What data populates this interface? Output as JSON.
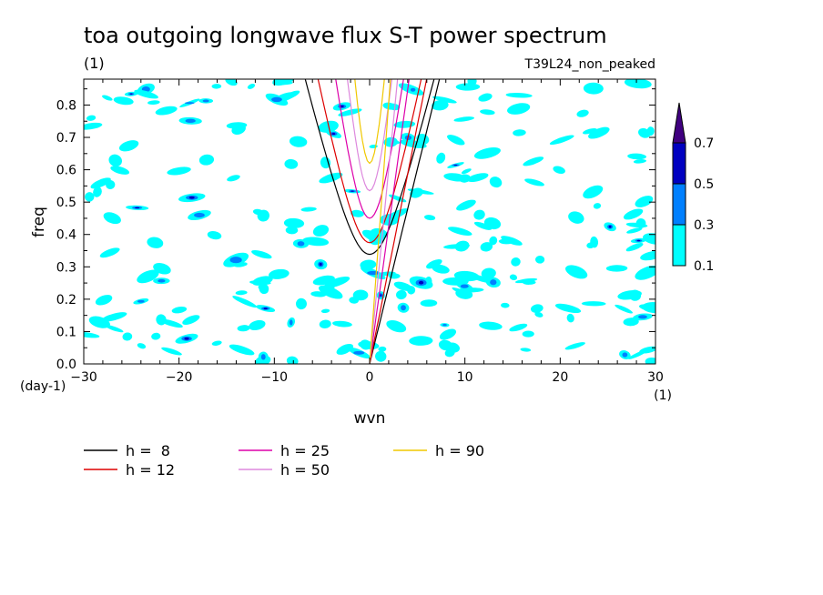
{
  "chart_data": {
    "type": "heatmap",
    "title": "toa outgoing longwave flux S-T power spectrum",
    "subtitle_left": "(1)",
    "subtitle_right": "T39L24_non_peaked",
    "xlabel": "wvn",
    "ylabel": "freq",
    "x_unit": "(1)",
    "y_unit": "(day-1)",
    "xlim": [
      -30,
      30
    ],
    "ylim": [
      0,
      0.88
    ],
    "x_ticks": [
      -30,
      -20,
      -10,
      0,
      10,
      20,
      30
    ],
    "y_ticks": [
      0.0,
      0.1,
      0.2,
      0.3,
      0.4,
      0.5,
      0.6,
      0.7,
      0.8
    ],
    "colorbar": {
      "levels": [
        0.1,
        0.3,
        0.5,
        0.7
      ],
      "labels": [
        "0.1",
        "0.3",
        "0.5",
        "0.7"
      ],
      "colors": [
        "#00ffff",
        "#0080ff",
        "#0000c0",
        "#400080"
      ]
    },
    "series": [
      {
        "name": "h =  8",
        "h": 8,
        "color": "#000000"
      },
      {
        "name": "h = 12",
        "h": 12,
        "color": "#dd0000"
      },
      {
        "name": "h = 25",
        "h": 25,
        "color": "#dd00aa"
      },
      {
        "name": "h = 50",
        "h": 50,
        "color": "#dd88dd"
      },
      {
        "name": "h = 90",
        "h": 90,
        "color": "#f0c800"
      }
    ],
    "legend_placement": "bottom-left"
  }
}
